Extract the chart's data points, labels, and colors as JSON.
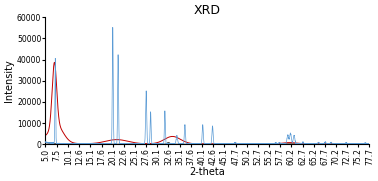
{
  "title": "XRD",
  "xlabel": "2-theta",
  "ylabel": "Intensity",
  "xlim": [
    5.0,
    77.7
  ],
  "ylim": [
    0,
    60000
  ],
  "xtick_labels": [
    "5.0",
    "7.5",
    "10.1",
    "12.6",
    "15.1",
    "17.6",
    "20.1",
    "22.6",
    "25.1",
    "27.6",
    "30.1",
    "32.6",
    "35.1",
    "37.6",
    "40.1",
    "42.6",
    "45.1",
    "47.7",
    "50.2",
    "52.7",
    "55.2",
    "57.7",
    "60.2",
    "62.7",
    "65.2",
    "67.7",
    "70.2",
    "72.7",
    "75.2",
    "77.7"
  ],
  "ytick_values": [
    0,
    10000,
    20000,
    30000,
    40000,
    50000,
    60000
  ],
  "background_color": "#ffffff",
  "line_blue_color": "#5b9bd5",
  "line_red_color": "#c00000",
  "line_black_color": "#1a1a1a",
  "title_fontsize": 9,
  "axis_label_fontsize": 7,
  "tick_fontsize": 5.5
}
